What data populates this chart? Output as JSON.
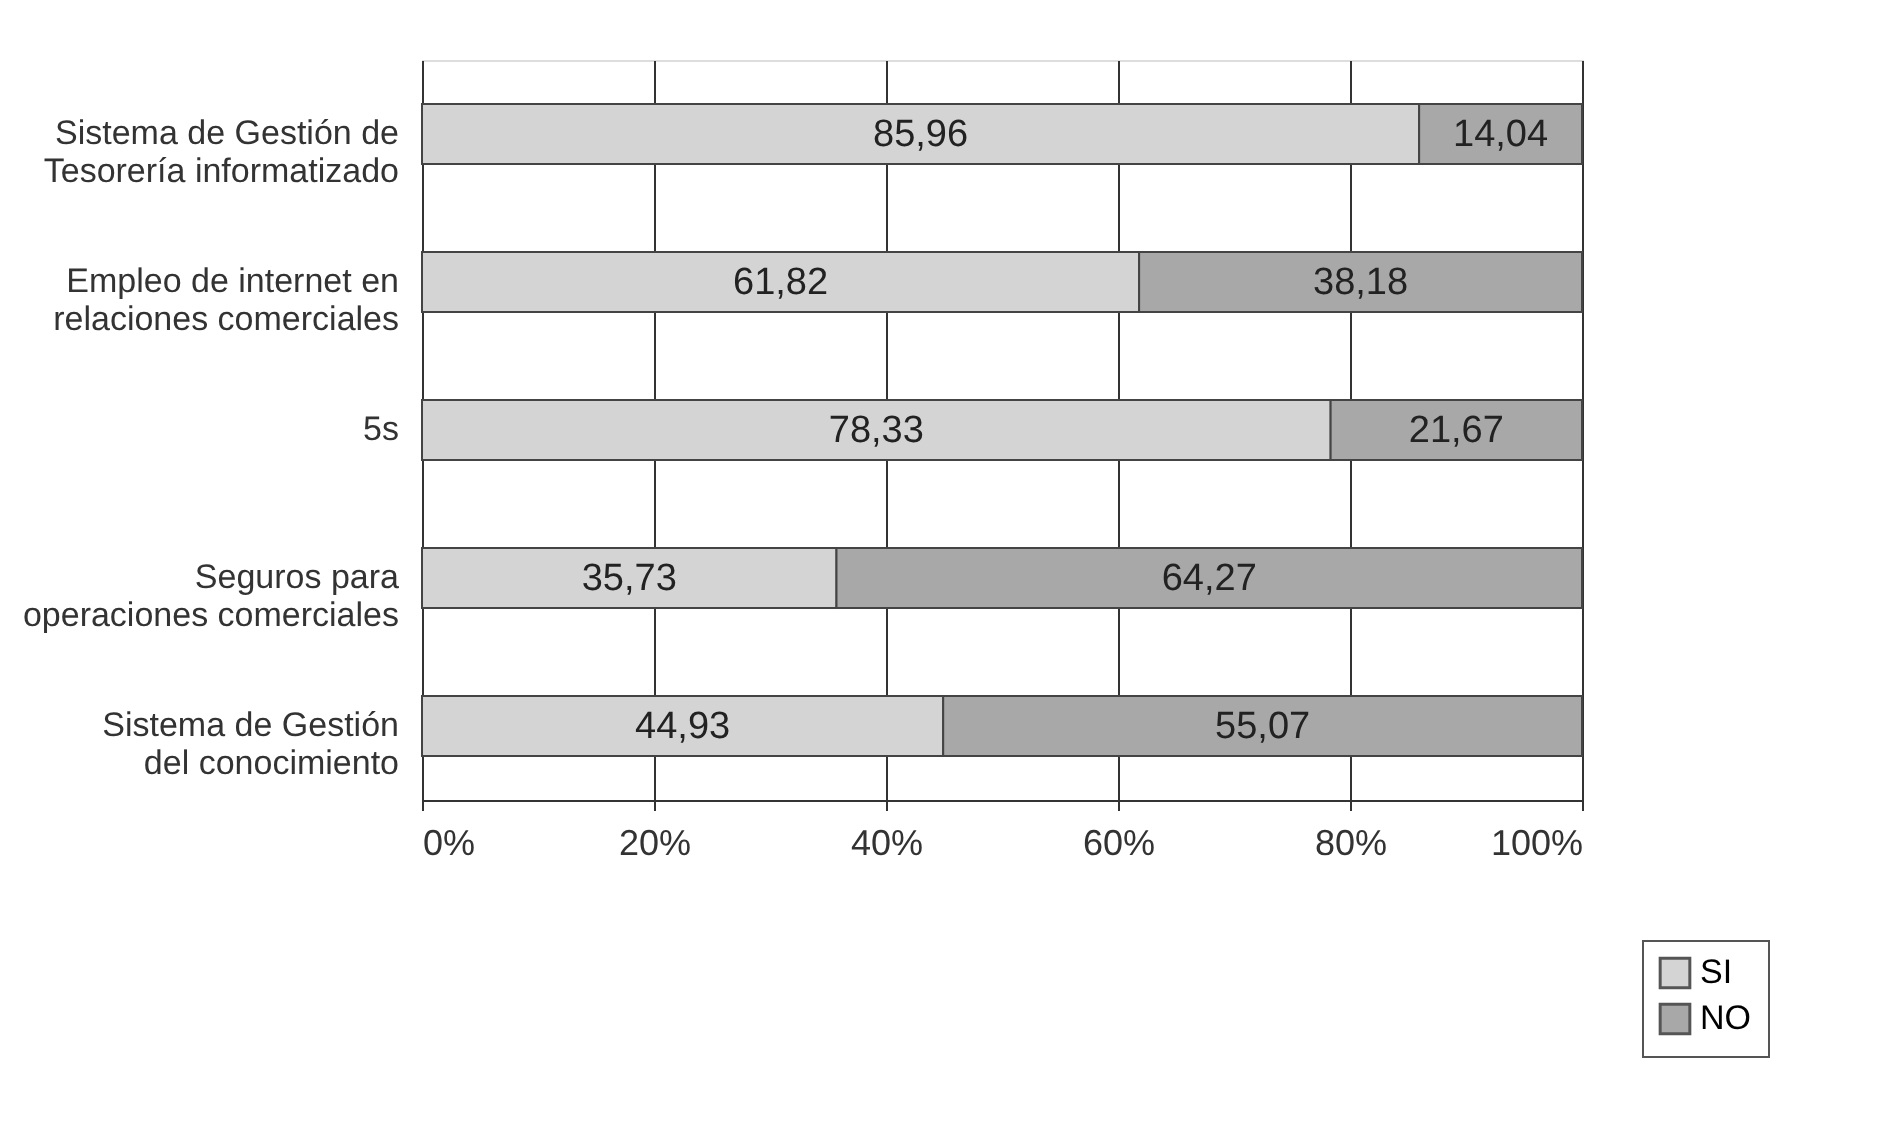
{
  "chart_data": {
    "type": "bar",
    "orientation": "horizontal",
    "stacked": true,
    "categories": [
      "Sistema de Gestión de\nTesorería informatizado",
      "Empleo de internet en\nrelaciones comerciales",
      "5s",
      "Seguros para\noperaciones comerciales",
      "Sistema de Gestión\ndel conocimiento"
    ],
    "series": [
      {
        "name": "SI",
        "color": "#d4d4d4",
        "values": [
          85.96,
          61.82,
          78.33,
          35.73,
          44.93
        ],
        "value_labels": [
          "85,96",
          "61,82",
          "78,33",
          "35,73",
          "44,93"
        ]
      },
      {
        "name": "NO",
        "color": "#a8a8a8",
        "values": [
          14.04,
          38.18,
          21.67,
          64.27,
          55.07
        ],
        "value_labels": [
          "14,04",
          "38,18",
          "21,67",
          "64,27",
          "55,07"
        ]
      }
    ],
    "xlim": [
      0,
      100
    ],
    "xticks": [
      {
        "value": 0,
        "label": "0%"
      },
      {
        "value": 20,
        "label": "20%"
      },
      {
        "value": 40,
        "label": "40%"
      },
      {
        "value": 60,
        "label": "60%"
      },
      {
        "value": 80,
        "label": "80%"
      },
      {
        "value": 100,
        "label": "100%"
      }
    ],
    "grid": "x",
    "legend": "bottom right"
  }
}
